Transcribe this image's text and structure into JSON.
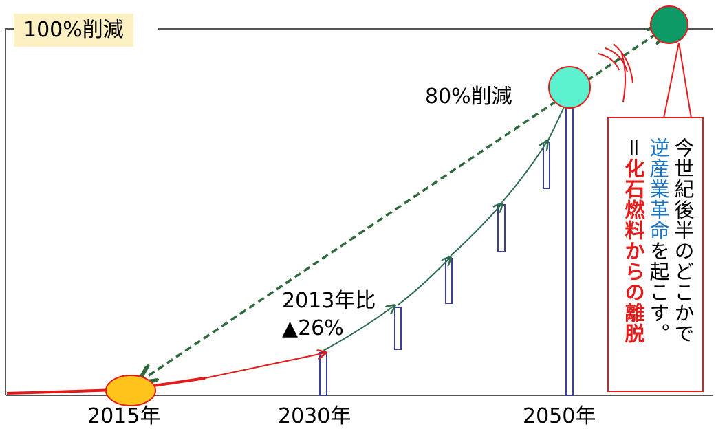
{
  "top_label": "100%削減",
  "mid_label": "80%削減",
  "note_2013": {
    "line1": "2013年比",
    "line2": "▲26%"
  },
  "x_labels": [
    "2015年",
    "2030年",
    "2050年"
  ],
  "callout": {
    "line1": "今世紀後半のどこかで",
    "line2_highlight": "逆産業革命",
    "line2_rest": "を起こす。",
    "line3_prefix": "＝",
    "line3_highlight": "化石燃料からの離脱"
  },
  "colors": {
    "frame": "#555555",
    "red": "#e31b1b",
    "green": "#2a6b4a",
    "dashed": "#2e6a3c",
    "bar": "#3b3f9a",
    "circle_100": "#0d9a67",
    "circle_80": "#5cf2cf",
    "ellipse_2015": "#ffc31c",
    "tag_bg": "#fdf0c3",
    "blue_text": "#1b75c2"
  }
}
